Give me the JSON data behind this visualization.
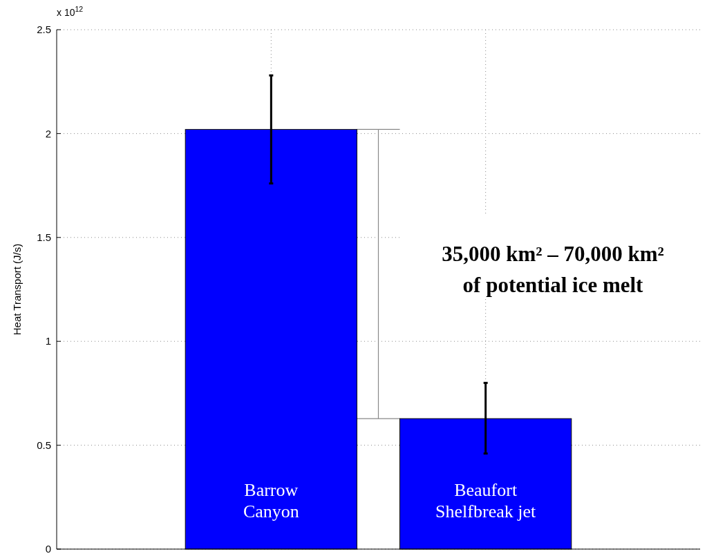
{
  "chart_data": {
    "type": "bar",
    "ylabel": "Heat Transport (J/s)",
    "categories": [
      "Barrow Canyon",
      "Beaufort Shelfbreak jet"
    ],
    "values": [
      2.02,
      0.628
    ],
    "errors": [
      [
        1.76,
        2.28
      ],
      [
        0.46,
        0.8
      ]
    ],
    "color": "#0000ff",
    "ylim": [
      0,
      2.5
    ],
    "yticks": [
      0,
      0.5,
      1,
      1.5,
      2,
      2.5
    ],
    "grid": true,
    "annotations": [
      "x 10$^{12}$",
      "35,000 km² – 70,000 km²",
      "of potential ice melt"
    ]
  }
}
